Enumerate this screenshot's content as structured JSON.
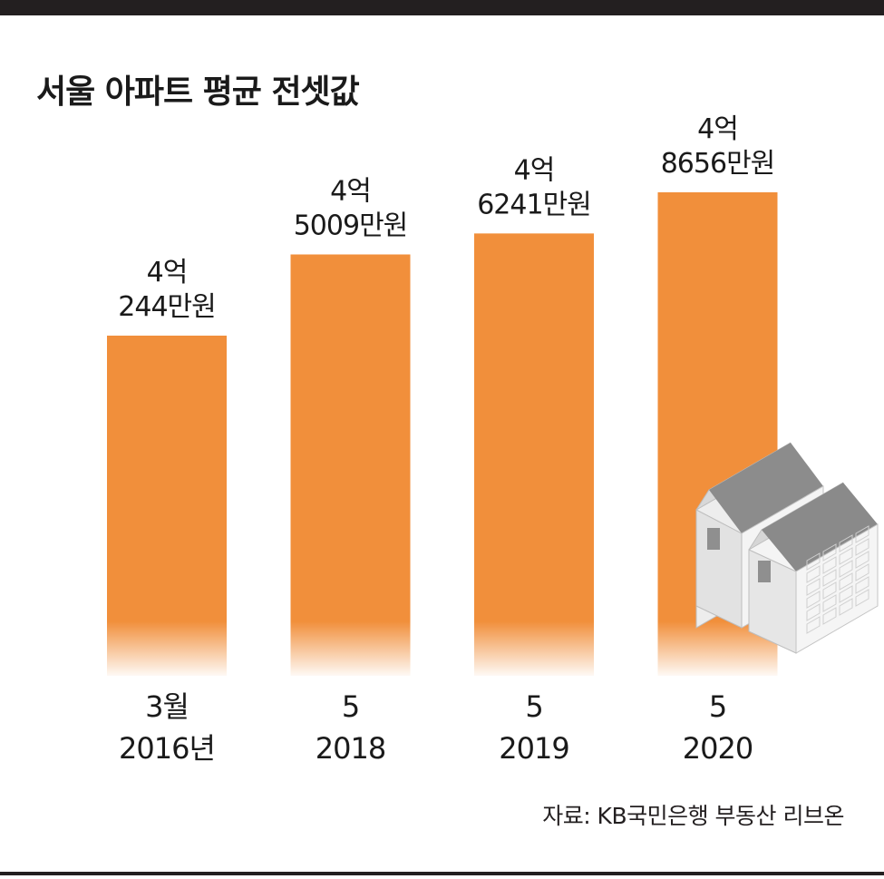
{
  "chart_data": {
    "type": "bar",
    "title": "서울 아파트 평균 전셋값",
    "categories": [
      {
        "line1": "3월",
        "line2": "2016년"
      },
      {
        "line1": "5",
        "line2": "2018"
      },
      {
        "line1": "5",
        "line2": "2019"
      },
      {
        "line1": "5",
        "line2": "2020"
      }
    ],
    "values": [
      40244,
      45009,
      46241,
      48656
    ],
    "value_unit": "만원",
    "value_labels": [
      {
        "line1": "4억",
        "line2": "244만원"
      },
      {
        "line1": "4억",
        "line2": "5009만원"
      },
      {
        "line1": "4억",
        "line2": "6241만원"
      },
      {
        "line1": "4억",
        "line2": "8656만원"
      }
    ],
    "source": "자료: KB국민은행 부동산 리브온",
    "grid": false,
    "legend": "none"
  },
  "colors": {
    "bar": "#f18f3b",
    "background": "#ffffff",
    "rule": "#231f20",
    "text": "#1a1a1a"
  },
  "decoration": {
    "icon": "apartment-building-illustration"
  }
}
